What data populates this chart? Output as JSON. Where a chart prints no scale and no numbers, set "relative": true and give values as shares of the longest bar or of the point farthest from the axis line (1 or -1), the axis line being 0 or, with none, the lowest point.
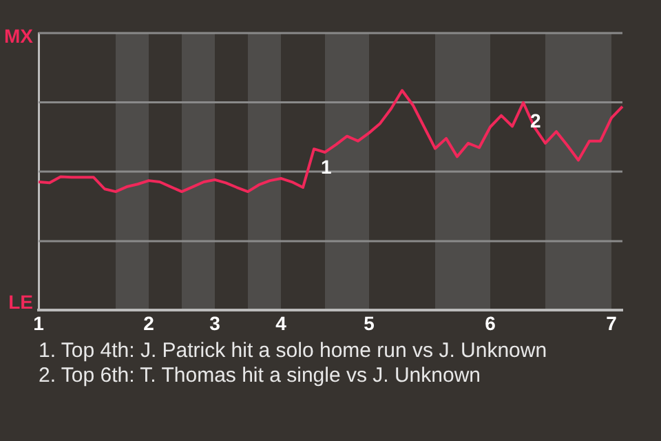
{
  "chart_data": {
    "type": "line",
    "categories": [
      "1",
      null,
      null,
      null,
      null,
      null,
      null,
      null,
      null,
      null,
      "2",
      null,
      null,
      null,
      null,
      null,
      "3",
      null,
      null,
      null,
      null,
      null,
      "4",
      null,
      null,
      null,
      null,
      null,
      null,
      null,
      "5",
      null,
      null,
      null,
      null,
      null,
      null,
      null,
      null,
      null,
      null,
      "6",
      null,
      null,
      null,
      null,
      null,
      null,
      null,
      null,
      null,
      null,
      "7",
      null
    ],
    "series": [
      {
        "color": "#f0285a",
        "values": [
          0.584,
          0.58,
          0.608,
          0.605,
          0.605,
          0.605,
          0.552,
          0.54,
          0.562,
          0.574,
          0.59,
          0.584,
          0.562,
          0.54,
          0.562,
          0.584,
          0.594,
          0.58,
          0.559,
          0.54,
          0.571,
          0.59,
          0.6,
          0.584,
          0.559,
          0.734,
          0.719,
          0.754,
          0.792,
          0.77,
          0.807,
          0.85,
          0.917,
          1,
          0.932,
          0.834,
          0.736,
          0.782,
          0.699,
          0.76,
          0.74,
          0.834,
          0.886,
          0.837,
          0.945,
          0.834,
          0.76,
          0.813,
          0.75,
          0.683,
          0.77,
          0.77,
          0.875,
          0.927
        ]
      }
    ],
    "relative": true,
    "legend": false,
    "ref_lines": [
      {
        "axis": "y",
        "value": 0.315,
        "color": "#8a8a8a"
      },
      {
        "axis": "y",
        "value": 0.631,
        "color": "#8a8a8a"
      },
      {
        "axis": "y",
        "value": 0.946,
        "color": "#8a8a8a"
      },
      {
        "axis": "y",
        "value": 1.261,
        "color": "#8a8a8a"
      }
    ],
    "marker": "none",
    "line_style": "solid",
    "annotations": [
      "MX",
      "LE",
      {
        "text": "1",
        "y": 0.734
      },
      {
        "text": "2",
        "y": 0.945
      },
      "1. Top 4th: J. Patrick hit a solo home run vs J. Unknown",
      "2. Top 6th: T. Thomas hit a single vs J. Unknown"
    ]
  }
}
